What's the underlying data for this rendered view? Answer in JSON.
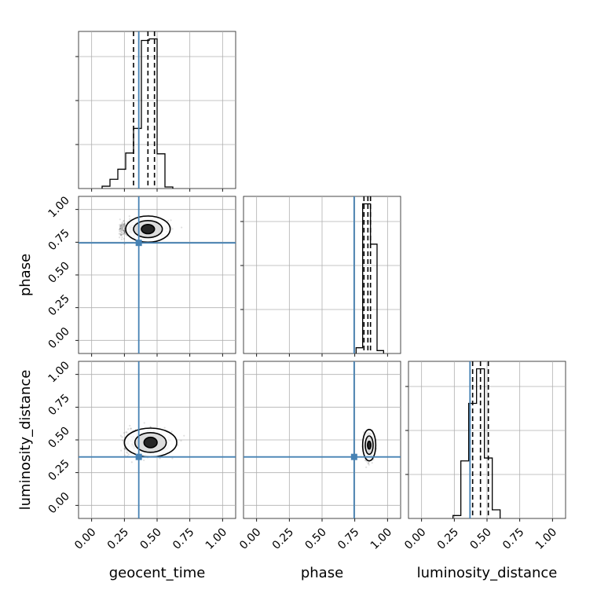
{
  "chart_data": {
    "type": "corner",
    "parameters": [
      "geocent_time",
      "phase",
      "luminosity_distance"
    ],
    "axis_labels": [
      "geocent_time",
      "phase",
      "luminosity_distance"
    ],
    "axis_range": [
      -0.1,
      1.1
    ],
    "tick_values": [
      0.0,
      0.25,
      0.5,
      0.75,
      1.0
    ],
    "tick_labels": [
      "0.00",
      "0.25",
      "0.50",
      "0.75",
      "1.00"
    ],
    "grid": true,
    "truth_color": "#4682b4",
    "truths": {
      "geocent_time": 0.36,
      "phase": 0.745,
      "luminosity_distance": 0.37
    },
    "histograms": [
      {
        "parameter": "geocent_time",
        "bin_edges": [
          0.08,
          0.14,
          0.2,
          0.26,
          0.32,
          0.38,
          0.44,
          0.5,
          0.56,
          0.62
        ],
        "counts": [
          0.03,
          0.12,
          0.25,
          0.46,
          0.78,
          1.92,
          1.94,
          0.45,
          0.02
        ],
        "quantile_lines": [
          0.32,
          0.43,
          0.48
        ]
      },
      {
        "parameter": "phase",
        "bin_edges": [
          0.76,
          0.81,
          0.87,
          0.92,
          0.97
        ],
        "counts": [
          0.1,
          2.6,
          1.9,
          0.05
        ],
        "quantile_lines": [
          0.82,
          0.85,
          0.87
        ]
      },
      {
        "parameter": "luminosity_distance",
        "bin_edges": [
          0.24,
          0.3,
          0.36,
          0.42,
          0.48,
          0.54,
          0.6
        ],
        "counts": [
          0.05,
          1.0,
          2.0,
          2.6,
          1.05,
          0.15
        ],
        "quantile_lines": [
          0.39,
          0.45,
          0.51
        ]
      }
    ],
    "scatter_panels": [
      {
        "x": "geocent_time",
        "y": "phase",
        "center": [
          0.43,
          0.85
        ],
        "spread": [
          0.12,
          0.06
        ],
        "tail_x": 0.22,
        "contour_levels": [
          {
            "rx": 0.17,
            "ry": 0.1
          },
          {
            "rx": 0.11,
            "ry": 0.065
          },
          {
            "rx": 0.05,
            "ry": 0.035
          }
        ]
      },
      {
        "x": "geocent_time",
        "y": "luminosity_distance",
        "center": [
          0.45,
          0.48
        ],
        "spread": [
          0.14,
          0.08
        ],
        "tail_x": 0.2,
        "contour_levels": [
          {
            "rx": 0.2,
            "ry": 0.11
          },
          {
            "rx": 0.12,
            "ry": 0.075
          },
          {
            "rx": 0.05,
            "ry": 0.04
          }
        ]
      },
      {
        "x": "phase",
        "y": "luminosity_distance",
        "center": [
          0.86,
          0.46
        ],
        "spread": [
          0.03,
          0.09
        ],
        "tail_x": 0.0,
        "contour_levels": [
          {
            "rx": 0.05,
            "ry": 0.12
          },
          {
            "rx": 0.03,
            "ry": 0.07
          },
          {
            "rx": 0.013,
            "ry": 0.03
          }
        ]
      }
    ]
  }
}
